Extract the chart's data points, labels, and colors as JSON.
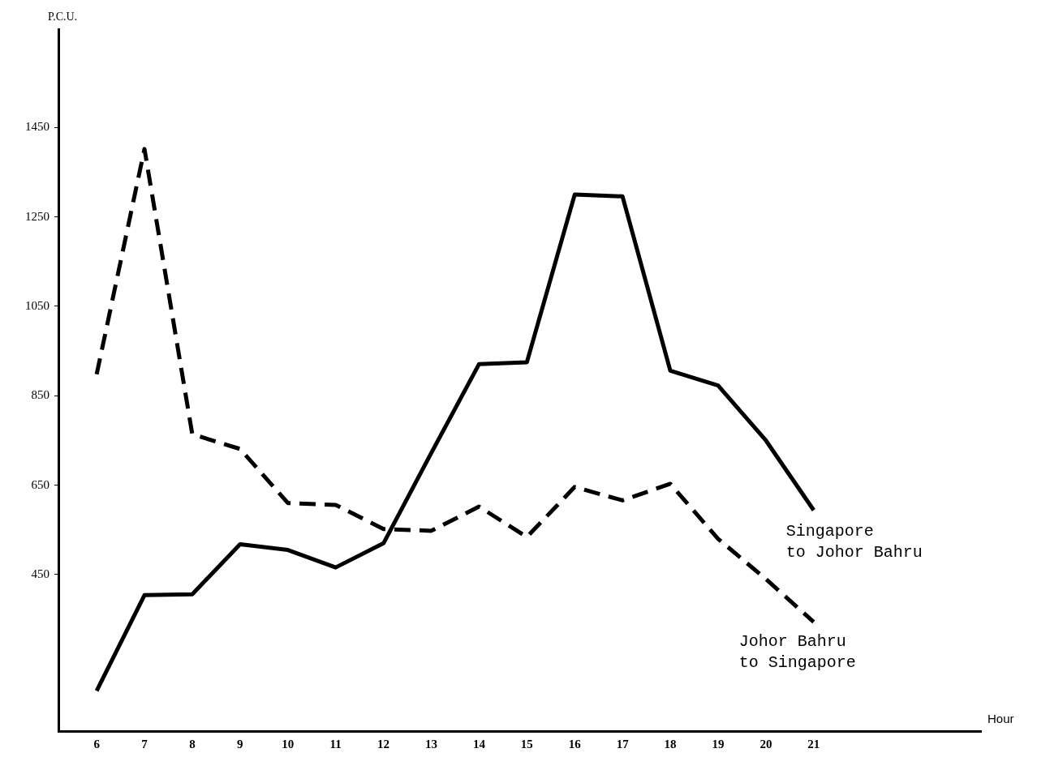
{
  "chart_data": {
    "type": "line",
    "xlabel": "Hour",
    "ylabel": "P.C.U.",
    "x": [
      6,
      7,
      8,
      9,
      10,
      11,
      12,
      13,
      14,
      15,
      16,
      17,
      18,
      19,
      20,
      21
    ],
    "xlim": [
      5.2,
      24.5
    ],
    "xticks": [
      6,
      7,
      8,
      9,
      10,
      11,
      12,
      13,
      14,
      15,
      16,
      17,
      18,
      19,
      20,
      21
    ],
    "ylim": [
      100,
      1670
    ],
    "yticks": [
      450,
      650,
      850,
      1050,
      1250,
      1450
    ],
    "legend": false,
    "marker": "none",
    "series": [
      {
        "name": "Singapore to Johor Bahru",
        "color": "#000000",
        "line_style": "solid",
        "values": [
          190,
          404,
          406,
          518,
          505,
          466,
          520,
          722,
          921,
          925,
          1300,
          1296,
          906,
          873,
          750,
          594
        ]
      },
      {
        "name": "Johor Bahru to Singapore",
        "color": "#000000",
        "line_style": "dashed",
        "values": [
          898,
          1402,
          764,
          731,
          610,
          606,
          552,
          548,
          602,
          534,
          646,
          616,
          653,
          530,
          440,
          344
        ]
      }
    ]
  }
}
